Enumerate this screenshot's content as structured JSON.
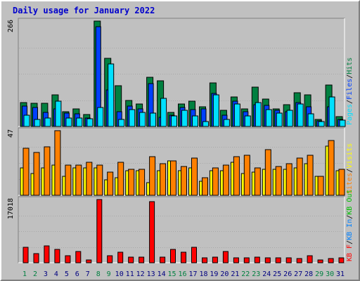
{
  "title": "Daily usage for January 2022",
  "colors": {
    "hits": "#008040",
    "files": "#0040ff",
    "pages": "#00e0ff",
    "visits": "#ffff00",
    "sites": "#ff8000",
    "kbf": "#ff0000",
    "kbin": "#0080ff",
    "kbout": "#00c000",
    "weekend_label": "#008040",
    "weekday_label": "#000080",
    "background": "#c0c0c0"
  },
  "chart_data": [
    {
      "type": "bar",
      "panel": "top",
      "max_label": "266",
      "ylim": [
        0,
        266
      ],
      "legend": [
        "Pages",
        "/",
        "Files",
        "/",
        "Hits"
      ],
      "categories": [
        "1",
        "2",
        "3",
        "4",
        "5",
        "6",
        "7",
        "8",
        "9",
        "10",
        "11",
        "12",
        "13",
        "14",
        "15",
        "16",
        "17",
        "18",
        "19",
        "20",
        "21",
        "22",
        "23",
        "24",
        "25",
        "26",
        "27",
        "28",
        "29",
        "30",
        "31"
      ],
      "weekend": [
        1,
        2,
        8,
        9,
        15,
        16,
        22,
        23,
        29,
        30
      ],
      "series": [
        {
          "name": "Hits",
          "values": [
            61,
            58,
            58,
            80,
            38,
            45,
            30,
            266,
            172,
            103,
            65,
            56,
            125,
            115,
            36,
            57,
            64,
            49,
            110,
            40,
            74,
            44,
            100,
            70,
            45,
            55,
            86,
            79,
            18,
            104,
            24
          ]
        },
        {
          "name": "Files",
          "values": [
            51,
            47,
            35,
            45,
            33,
            32,
            22,
            252,
            93,
            38,
            51,
            45,
            108,
            23,
            29,
            47,
            42,
            45,
            83,
            29,
            64,
            37,
            55,
            53,
            40,
            38,
            60,
            49,
            14,
            49,
            18
          ]
        },
        {
          "name": "Pages",
          "values": [
            29,
            17,
            21,
            64,
            21,
            21,
            19,
            47,
            158,
            17,
            42,
            35,
            33,
            71,
            26,
            41,
            26,
            13,
            79,
            18,
            56,
            27,
            60,
            42,
            33,
            41,
            56,
            32,
            12,
            74,
            16
          ]
        }
      ]
    },
    {
      "type": "bar",
      "panel": "middle",
      "max_label": "47",
      "ylim": [
        0,
        47
      ],
      "legend": [
        "Sites",
        "/",
        "Visits"
      ],
      "categories": [
        "1",
        "2",
        "3",
        "4",
        "5",
        "6",
        "7",
        "8",
        "9",
        "10",
        "11",
        "12",
        "13",
        "14",
        "15",
        "16",
        "17",
        "18",
        "19",
        "20",
        "21",
        "22",
        "23",
        "24",
        "25",
        "26",
        "27",
        "28",
        "29",
        "30",
        "31"
      ],
      "series": [
        {
          "name": "Visits",
          "values": [
            20,
            16,
            20,
            22,
            14,
            20,
            20,
            20,
            11,
            13,
            18,
            18,
            9,
            18,
            25,
            18,
            20,
            10,
            18,
            18,
            24,
            16,
            17,
            19,
            19,
            19,
            20,
            23,
            14,
            36,
            18
          ]
        },
        {
          "name": "Sites",
          "values": [
            34,
            31,
            35,
            47,
            22,
            22,
            24,
            22,
            17,
            24,
            19,
            19,
            28,
            23,
            25,
            21,
            27,
            13,
            20,
            22,
            28,
            29,
            20,
            33,
            21,
            23,
            27,
            29,
            14,
            40,
            19
          ]
        }
      ]
    },
    {
      "type": "bar",
      "panel": "bottom",
      "max_label": "17018",
      "ylim": [
        0,
        17018
      ],
      "legend": [
        "KB F",
        "/",
        "KB In",
        "/",
        "KB Out"
      ],
      "categories": [
        "1",
        "2",
        "3",
        "4",
        "5",
        "6",
        "7",
        "8",
        "9",
        "10",
        "11",
        "12",
        "13",
        "14",
        "15",
        "16",
        "17",
        "18",
        "19",
        "20",
        "21",
        "22",
        "23",
        "24",
        "25",
        "26",
        "27",
        "28",
        "29",
        "30",
        "31"
      ],
      "series": [
        {
          "name": "KB F",
          "values": [
            4200,
            2500,
            4500,
            3500,
            1800,
            3100,
            800,
            17018,
            1900,
            2900,
            1500,
            1600,
            16400,
            1600,
            3600,
            2900,
            4100,
            1300,
            1600,
            3100,
            1300,
            1400,
            1500,
            1400,
            1400,
            1300,
            1100,
            1900,
            800,
            1200,
            1400
          ]
        }
      ]
    }
  ]
}
